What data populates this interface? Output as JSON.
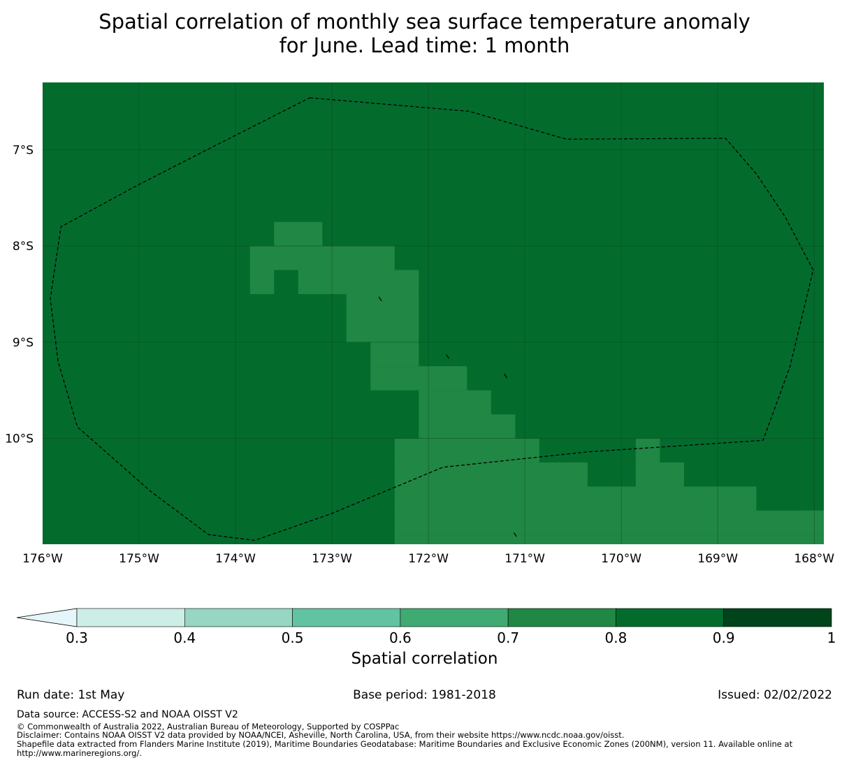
{
  "title": {
    "line1": "Spatial correlation of monthly sea surface temperature anomaly",
    "line2": "for June. Lead time: 1 month"
  },
  "map": {
    "lon_range": [
      -176.0,
      -167.9
    ],
    "lat_range": [
      -11.1,
      -6.3
    ],
    "base_value": 0.85,
    "lat_ticks": [
      {
        "value": -7,
        "label": "7°S"
      },
      {
        "value": -8,
        "label": "8°S"
      },
      {
        "value": -9,
        "label": "9°S"
      },
      {
        "value": -10,
        "label": "10°S"
      }
    ],
    "lon_ticks": [
      {
        "value": -176,
        "label": "176°W"
      },
      {
        "value": -175,
        "label": "175°W"
      },
      {
        "value": -174,
        "label": "174°W"
      },
      {
        "value": -173,
        "label": "173°W"
      },
      {
        "value": -172,
        "label": "172°W"
      },
      {
        "value": -171,
        "label": "171°W"
      },
      {
        "value": -170,
        "label": "170°W"
      },
      {
        "value": -169,
        "label": "169°W"
      },
      {
        "value": -168,
        "label": "168°W"
      }
    ],
    "cells_0_7_to_0_8": [
      {
        "lon": [
          -173.6,
          -173.1
        ],
        "lat": [
          -8.0,
          -7.75
        ]
      },
      {
        "lon": [
          -173.85,
          -172.35
        ],
        "lat": [
          -8.25,
          -8.0
        ]
      },
      {
        "lon": [
          -173.85,
          -173.6
        ],
        "lat": [
          -8.5,
          -8.25
        ]
      },
      {
        "lon": [
          -173.35,
          -172.1
        ],
        "lat": [
          -8.5,
          -8.25
        ]
      },
      {
        "lon": [
          -172.85,
          -172.1
        ],
        "lat": [
          -9.0,
          -8.5
        ]
      },
      {
        "lon": [
          -172.6,
          -172.1
        ],
        "lat": [
          -9.25,
          -9.0
        ]
      },
      {
        "lon": [
          -172.6,
          -171.6
        ],
        "lat": [
          -9.5,
          -9.25
        ]
      },
      {
        "lon": [
          -172.1,
          -171.35
        ],
        "lat": [
          -9.75,
          -9.5
        ]
      },
      {
        "lon": [
          -172.1,
          -171.1
        ],
        "lat": [
          -10.0,
          -9.75
        ]
      },
      {
        "lon": [
          -172.35,
          -170.85
        ],
        "lat": [
          -10.25,
          -10.0
        ]
      },
      {
        "lon": [
          -169.85,
          -169.6
        ],
        "lat": [
          -10.25,
          -10.0
        ]
      },
      {
        "lon": [
          -172.35,
          -170.35
        ],
        "lat": [
          -10.5,
          -10.25
        ]
      },
      {
        "lon": [
          -169.85,
          -169.35
        ],
        "lat": [
          -10.5,
          -10.25
        ]
      },
      {
        "lon": [
          -172.35,
          -168.6
        ],
        "lat": [
          -10.75,
          -10.5
        ]
      },
      {
        "lon": [
          -172.35,
          -167.85
        ],
        "lat": [
          -11.0,
          -10.75
        ]
      },
      {
        "lon": [
          -172.35,
          -167.85
        ],
        "lat": [
          -11.25,
          -11.0
        ]
      },
      {
        "lon": [
          -168.1,
          -167.85
        ],
        "lat": [
          -11.0,
          -10.75
        ]
      }
    ],
    "eez_boundary": [
      [
        -173.23,
        -6.46
      ],
      [
        -171.58,
        -6.6
      ],
      [
        -170.57,
        -6.89
      ],
      [
        -168.92,
        -6.88
      ],
      [
        -168.6,
        -7.25
      ],
      [
        -168.3,
        -7.7
      ],
      [
        -168.01,
        -8.25
      ],
      [
        -168.25,
        -9.25
      ],
      [
        -168.53,
        -10.02
      ],
      [
        -170.35,
        -10.14
      ],
      [
        -171.85,
        -10.3
      ],
      [
        -173.0,
        -10.78
      ],
      [
        -173.8,
        -11.06
      ],
      [
        -174.28,
        -11.0
      ],
      [
        -174.88,
        -10.55
      ],
      [
        -175.64,
        -9.88
      ],
      [
        -175.84,
        -9.2
      ],
      [
        -175.92,
        -8.55
      ],
      [
        -175.81,
        -7.8
      ],
      [
        -175.0,
        -7.36
      ],
      [
        -174.0,
        -6.85
      ],
      [
        -173.23,
        -6.46
      ]
    ],
    "islands": [
      [
        -172.5,
        -8.55
      ],
      [
        -171.8,
        -9.15
      ],
      [
        -171.2,
        -9.35
      ],
      [
        -171.1,
        -11.0
      ]
    ]
  },
  "colorbar": {
    "label": "Spatial correlation",
    "colors": [
      "#cceee6",
      "#96d6c3",
      "#62c3a2",
      "#40aa73",
      "#218744",
      "#036c2d",
      "#00441b"
    ],
    "extend_color": "#e5f5f9",
    "ticks": [
      "0.3",
      "0.4",
      "0.5",
      "0.6",
      "0.7",
      "0.8",
      "0.9",
      "1"
    ]
  },
  "footer": {
    "run_date": "Run date: 1st May",
    "base_period": "Base period: 1981-2018",
    "issued": "Issued: 02/02/2022",
    "data_source": "Data source: ACCESS-S2 and NOAA OISST V2",
    "copyright": "© Commonwealth of Australia 2022, Australian Bureau of Meteorology, Supported by COSPPac",
    "disclaimer": "Disclaimer: Contains NOAA OISST V2 data provided by NOAA/NCEI, Asheville, North Carolina, USA, from their website https://www.ncdc.noaa.gov/oisst.",
    "shapefile": "Shapefile data extracted from Flanders Marine Institute (2019), Maritime Boundaries Geodatabase: Maritime Boundaries and Exclusive Economic Zones (200NM), version 11. Available online at http://www.marineregions.org/."
  }
}
